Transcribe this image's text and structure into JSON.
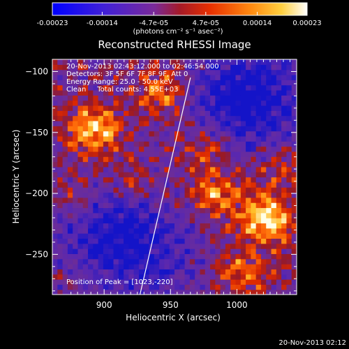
{
  "colorbar": {
    "tick_labels": [
      "-0.00023",
      "-0.00014",
      "-4.7e-05",
      "4.7e-05",
      "0.00014",
      "0.00023"
    ],
    "tick_values": [
      -0.00023,
      -0.00014,
      -4.7e-05,
      4.7e-05,
      0.00014,
      0.00023
    ],
    "range": [
      -0.00023,
      0.00023
    ],
    "units_label": "(photons cm⁻² s⁻¹ asec⁻²)",
    "colors": [
      "#0000ff",
      "#6a2aa8",
      "#a41414",
      "#ff4a00",
      "#ffb020",
      "#ffffff"
    ]
  },
  "chart_data": {
    "type": "heatmap",
    "title": "Reconstructed RHESSI Image",
    "xlabel": "Heliocentric X (arcsec)",
    "ylabel": "Heliocentric Y (arcsec)",
    "xlim": [
      861,
      1045
    ],
    "ylim": [
      -283,
      -90
    ],
    "x_ticks": [
      900,
      950,
      1000
    ],
    "y_ticks": [
      -100,
      -150,
      -200,
      -250
    ],
    "x_tick_labels": [
      "900",
      "950",
      "1000"
    ],
    "y_tick_labels": [
      "−100",
      "−150",
      "−200",
      "−250"
    ],
    "annotations": [
      "20-Nov-2013 02:43:12.000 to 02:46:54.000",
      "Detectors: 3F 5F 6F 7F 8F 9F, Att 0",
      "Energy Range: 25.0 - 50.0 keV",
      "Clean     Total counts: 4.55E+03"
    ],
    "peak_label": "Position of Peak = [1023,-220]",
    "peak": [
      1023,
      -220
    ],
    "limb_line": [
      [
        927,
        -283
      ],
      [
        965,
        -105
      ]
    ],
    "bright_sources": [
      {
        "x": 893,
        "y": -148,
        "amp": 1.0
      },
      {
        "x": 1023,
        "y": -220,
        "amp": 1.15
      },
      {
        "x": 945,
        "y": -115,
        "amp": 0.75
      },
      {
        "x": 985,
        "y": -200,
        "amp": 0.7
      },
      {
        "x": 920,
        "y": -195,
        "amp": 0.5
      },
      {
        "x": 880,
        "y": -205,
        "amp": 0.45
      },
      {
        "x": 1005,
        "y": -265,
        "amp": 0.6
      },
      {
        "x": 975,
        "y": -160,
        "amp": 0.5
      },
      {
        "x": 1035,
        "y": -175,
        "amp": 0.4
      }
    ],
    "dim_regions": [
      {
        "x": 905,
        "y": -225,
        "amp": -0.8
      },
      {
        "x": 1020,
        "y": -125,
        "amp": -0.7
      },
      {
        "x": 990,
        "y": -120,
        "amp": -0.5
      },
      {
        "x": 935,
        "y": -255,
        "amp": -0.5
      }
    ]
  },
  "footer": {
    "timestamp": "20-Nov-2013 02:12"
  }
}
